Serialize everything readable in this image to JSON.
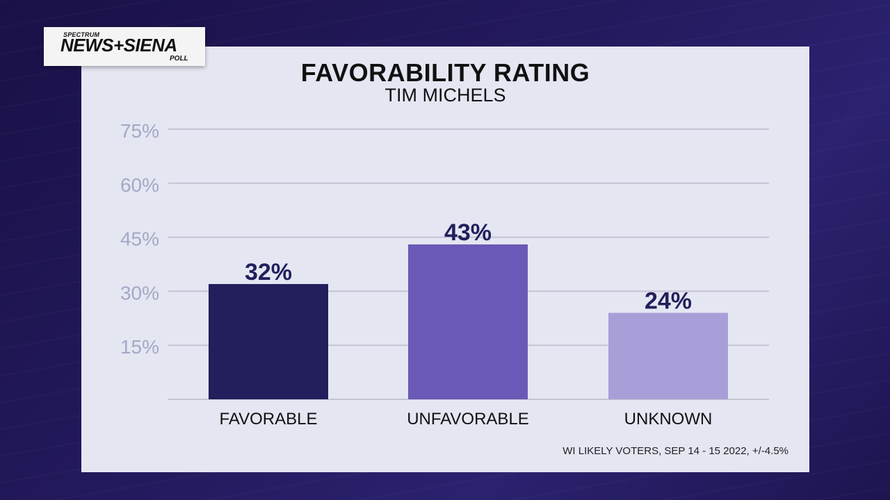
{
  "logo": {
    "top": "SPECTRUM",
    "main": "NEWS+SIENA",
    "sub": "POLL"
  },
  "chart_data": {
    "type": "bar",
    "title": "FAVORABILITY RATING",
    "subtitle": "TIM MICHELS",
    "categories": [
      "FAVORABLE",
      "UNFAVORABLE",
      "UNKNOWN"
    ],
    "values": [
      32,
      43,
      24
    ],
    "value_labels": [
      "32%",
      "43%",
      "24%"
    ],
    "colors": [
      "#231e5c",
      "#6a59b6",
      "#a99fd8"
    ],
    "y_ticks": [
      15,
      30,
      45,
      60,
      75
    ],
    "y_tick_labels": [
      "15%",
      "30%",
      "45%",
      "60%",
      "75%"
    ],
    "ylim": [
      0,
      75
    ],
    "grid": true,
    "note": "WI LIKELY VOTERS, SEP 14 - 15 2022, +/-4.5%"
  }
}
